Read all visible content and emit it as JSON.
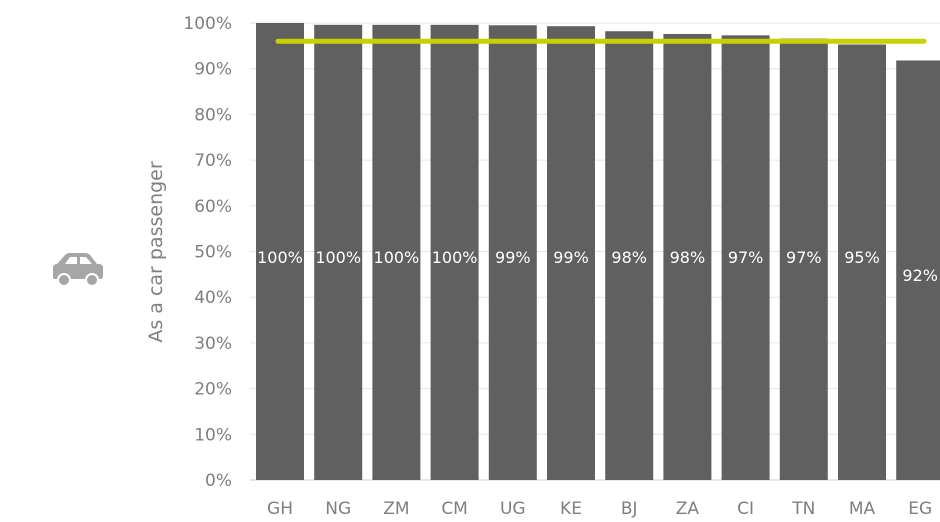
{
  "icon": "car-icon",
  "chart_data": {
    "type": "bar",
    "title": "",
    "xlabel": "",
    "ylabel": "As a car passenger",
    "categories": [
      "GH",
      "NG",
      "ZM",
      "CM",
      "UG",
      "KE",
      "BJ",
      "ZA",
      "CI",
      "TN",
      "MA",
      "EG"
    ],
    "values": [
      100,
      99.6,
      99.6,
      99.6,
      99.5,
      99.3,
      98.2,
      97.6,
      97.3,
      96.6,
      95.3,
      91.8
    ],
    "data_labels": [
      "100%",
      "100%",
      "100%",
      "100%",
      "99%",
      "99%",
      "98%",
      "98%",
      "97%",
      "97%",
      "95%",
      "92%"
    ],
    "ylim": [
      0,
      100
    ],
    "yticks": [
      "0%",
      "10%",
      "20%",
      "30%",
      "40%",
      "50%",
      "60%",
      "70%",
      "80%",
      "90%",
      "100%"
    ],
    "reference_line": {
      "value": 96,
      "color": "#c5d200"
    },
    "bar_color": "#606060",
    "grid": true
  }
}
